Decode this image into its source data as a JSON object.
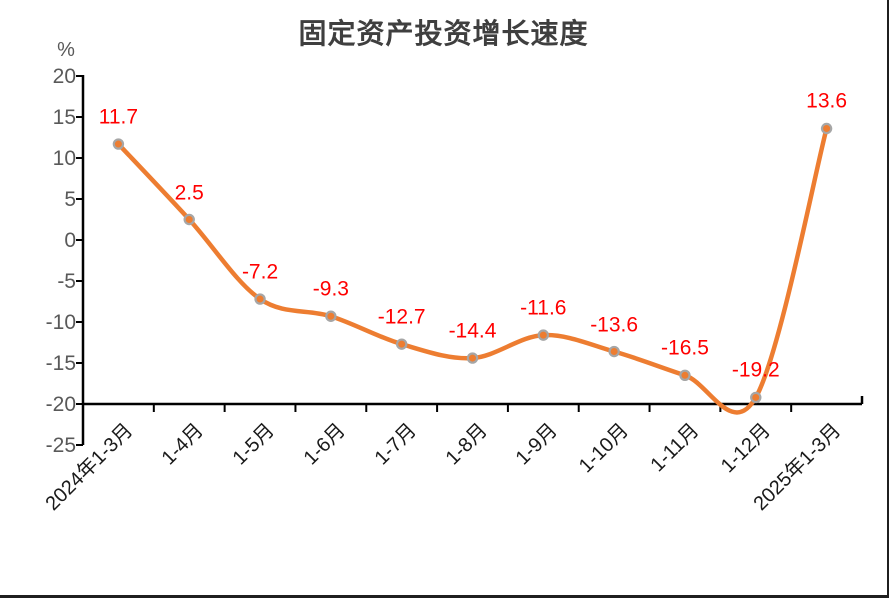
{
  "chart_data": {
    "type": "line",
    "title": "固定资产投资增长速度",
    "unit_label": "%",
    "categories": [
      "2024年1-3月",
      "1-4月",
      "1-5月",
      "1-6月",
      "1-7月",
      "1-8月",
      "1-9月",
      "1-10月",
      "1-11月",
      "1-12月",
      "2025年1-3月"
    ],
    "series": [
      {
        "name": "固定资产投资增长速度",
        "values": [
          11.7,
          2.5,
          -7.2,
          -9.3,
          -12.7,
          -14.4,
          -11.6,
          -13.6,
          -16.5,
          -19.2,
          13.6
        ]
      }
    ],
    "data_labels": [
      "11.7",
      "2.5",
      "-7.2",
      "-9.3",
      "-12.7",
      "-14.4",
      "-11.6",
      "-13.6",
      "-16.5",
      "-19.2",
      "13.6"
    ],
    "yticks": [
      20,
      15,
      10,
      5,
      0,
      -5,
      -10,
      -15,
      -20,
      -25
    ],
    "ylim": [
      -25,
      20
    ],
    "x_axis_cross_at": -20,
    "smooth": true,
    "grid": false,
    "legend": "none",
    "colors": {
      "line": "#ED7D31",
      "marker_fill": "#ED7D31",
      "marker_border": "#A6A6A6",
      "data_label": "#FF0000",
      "axis": "#000000",
      "tick_label": "#595959",
      "x_label": "#1A1A1A",
      "title": "#3F3F3F"
    }
  }
}
